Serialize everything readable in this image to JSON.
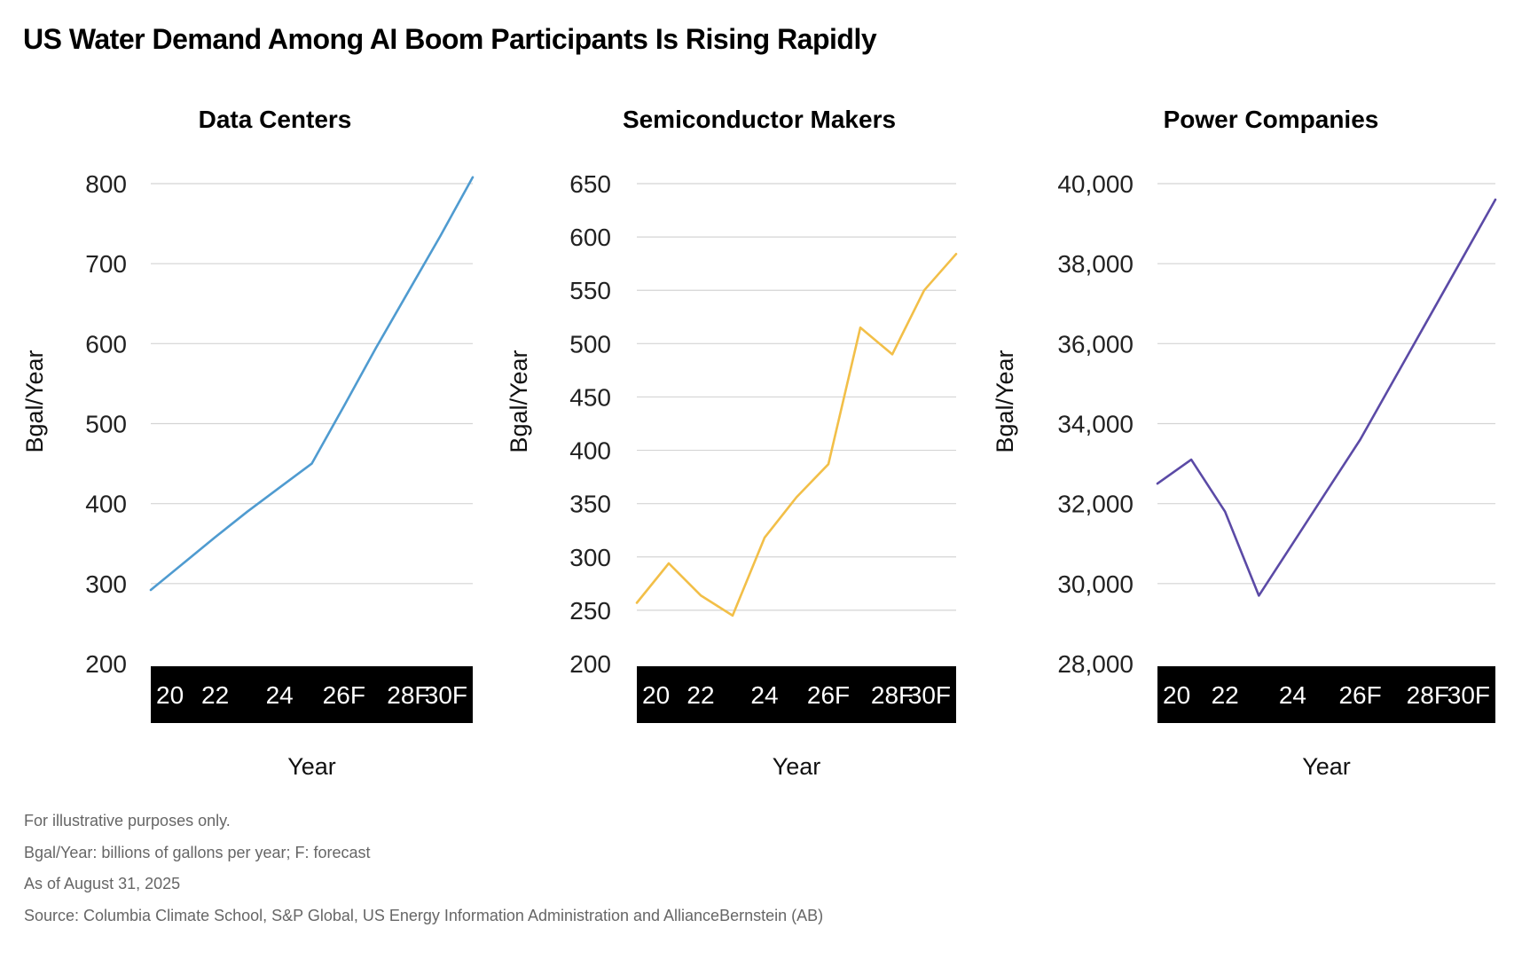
{
  "title": "US Water Demand Among AI Boom Participants Is Rising Rapidly",
  "chart_data": [
    {
      "type": "line",
      "title": "Data Centers",
      "ylabel": "Bgal/Year",
      "xlabel": "Year",
      "color": "#4f9bd0",
      "ylim": [
        200,
        800
      ],
      "yticks": [
        200,
        300,
        400,
        500,
        600,
        700,
        800
      ],
      "ytick_labels": [
        "200",
        "300",
        "400",
        "500",
        "600",
        "700",
        "800"
      ],
      "xlim": [
        2020,
        2030
      ],
      "xticks": [
        2020,
        2022,
        2024,
        2026,
        2028,
        2030
      ],
      "xtick_labels": [
        "20",
        "22",
        "24",
        "26F",
        "28F",
        "30F"
      ],
      "grid": true,
      "series": [
        {
          "x": [
            2020,
            2021,
            2022,
            2023,
            2024,
            2025,
            2026,
            2027,
            2028,
            2029,
            2030
          ],
          "y": [
            292,
            325,
            358,
            390,
            420,
            450,
            522,
            595,
            665,
            735,
            808
          ]
        }
      ]
    },
    {
      "type": "line",
      "title": "Semiconductor Makers",
      "ylabel": "Bgal/Year",
      "xlabel": "Year",
      "color": "#f2bf48",
      "ylim": [
        200,
        650
      ],
      "yticks": [
        200,
        250,
        300,
        350,
        400,
        450,
        500,
        550,
        600,
        650
      ],
      "ytick_labels": [
        "200",
        "250",
        "300",
        "350",
        "400",
        "450",
        "500",
        "550",
        "600",
        "650"
      ],
      "xlim": [
        2020,
        2030
      ],
      "xticks": [
        2020,
        2022,
        2024,
        2026,
        2028,
        2030
      ],
      "xtick_labels": [
        "20",
        "22",
        "24",
        "26F",
        "28F",
        "30F"
      ],
      "grid": true,
      "series": [
        {
          "x": [
            2020,
            2021,
            2022,
            2023,
            2024,
            2025,
            2026,
            2027,
            2028,
            2029,
            2030
          ],
          "y": [
            257,
            294,
            264,
            245,
            318,
            356,
            387,
            515,
            490,
            550,
            584
          ]
        }
      ]
    },
    {
      "type": "line",
      "title": "Power Companies",
      "ylabel": "Bgal/Year",
      "xlabel": "Year",
      "color": "#5b4aa6",
      "ylim": [
        28000,
        40000
      ],
      "yticks": [
        28000,
        30000,
        32000,
        34000,
        36000,
        38000,
        40000
      ],
      "ytick_labels": [
        "28,000",
        "30,000",
        "32,000",
        "34,000",
        "36,000",
        "38,000",
        "40,000"
      ],
      "xlim": [
        2020,
        2030
      ],
      "xticks": [
        2020,
        2022,
        2024,
        2026,
        2028,
        2030
      ],
      "xtick_labels": [
        "20",
        "22",
        "24",
        "26F",
        "28F",
        "30F"
      ],
      "grid": true,
      "series": [
        {
          "x": [
            2020,
            2021,
            2022,
            2023,
            2024,
            2025,
            2026,
            2027,
            2028,
            2029,
            2030
          ],
          "y": [
            32500,
            33100,
            31800,
            29700,
            31000,
            32300,
            33600,
            35100,
            36600,
            38100,
            39600
          ]
        }
      ]
    }
  ],
  "footnotes": [
    "For illustrative purposes only.",
    "Bgal/Year: billions of gallons per year; F: forecast",
    "As of August 31, 2025",
    "Source: Columbia Climate School, S&P Global, US Energy Information Administration and AllianceBernstein (AB)"
  ]
}
